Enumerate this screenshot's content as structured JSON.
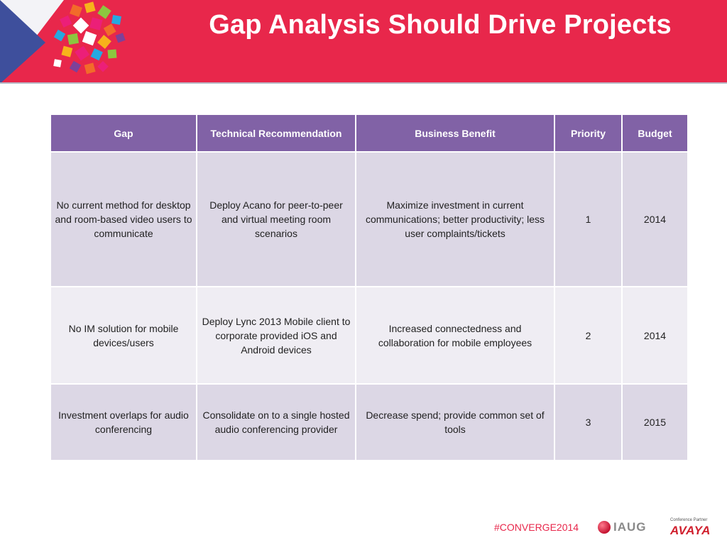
{
  "header": {
    "title": "Gap Analysis Should Drive Projects",
    "colors": {
      "banner": "#e8274b",
      "table_header": "#8162a6"
    }
  },
  "table": {
    "columns": [
      "Gap",
      "Technical Recommendation",
      "Business Benefit",
      "Priority",
      "Budget"
    ],
    "rows": [
      {
        "gap": "No current method for desktop and room-based video users to communicate",
        "recommendation": "Deploy Acano for peer-to-peer and virtual meeting room scenarios",
        "benefit": "Maximize investment in current communications; better productivity; less user complaints/tickets",
        "priority": "1",
        "budget": "2014"
      },
      {
        "gap": "No IM solution for mobile devices/users",
        "recommendation": "Deploy Lync 2013 Mobile client to corporate provided iOS and Android devices",
        "benefit": "Increased connectedness and collaboration for mobile employees",
        "priority": "2",
        "budget": "2014"
      },
      {
        "gap": "Investment overlaps for audio conferencing",
        "recommendation": "Consolidate on to a single hosted audio conferencing provider",
        "benefit": "Decrease spend; provide common set of tools",
        "priority": "3",
        "budget": "2015"
      }
    ]
  },
  "footer": {
    "hashtag": "#CONVERGE2014",
    "iaug_logo": "IAUG",
    "avaya_partner_label": "Conference Partner",
    "avaya_logo": "AVAYA"
  }
}
